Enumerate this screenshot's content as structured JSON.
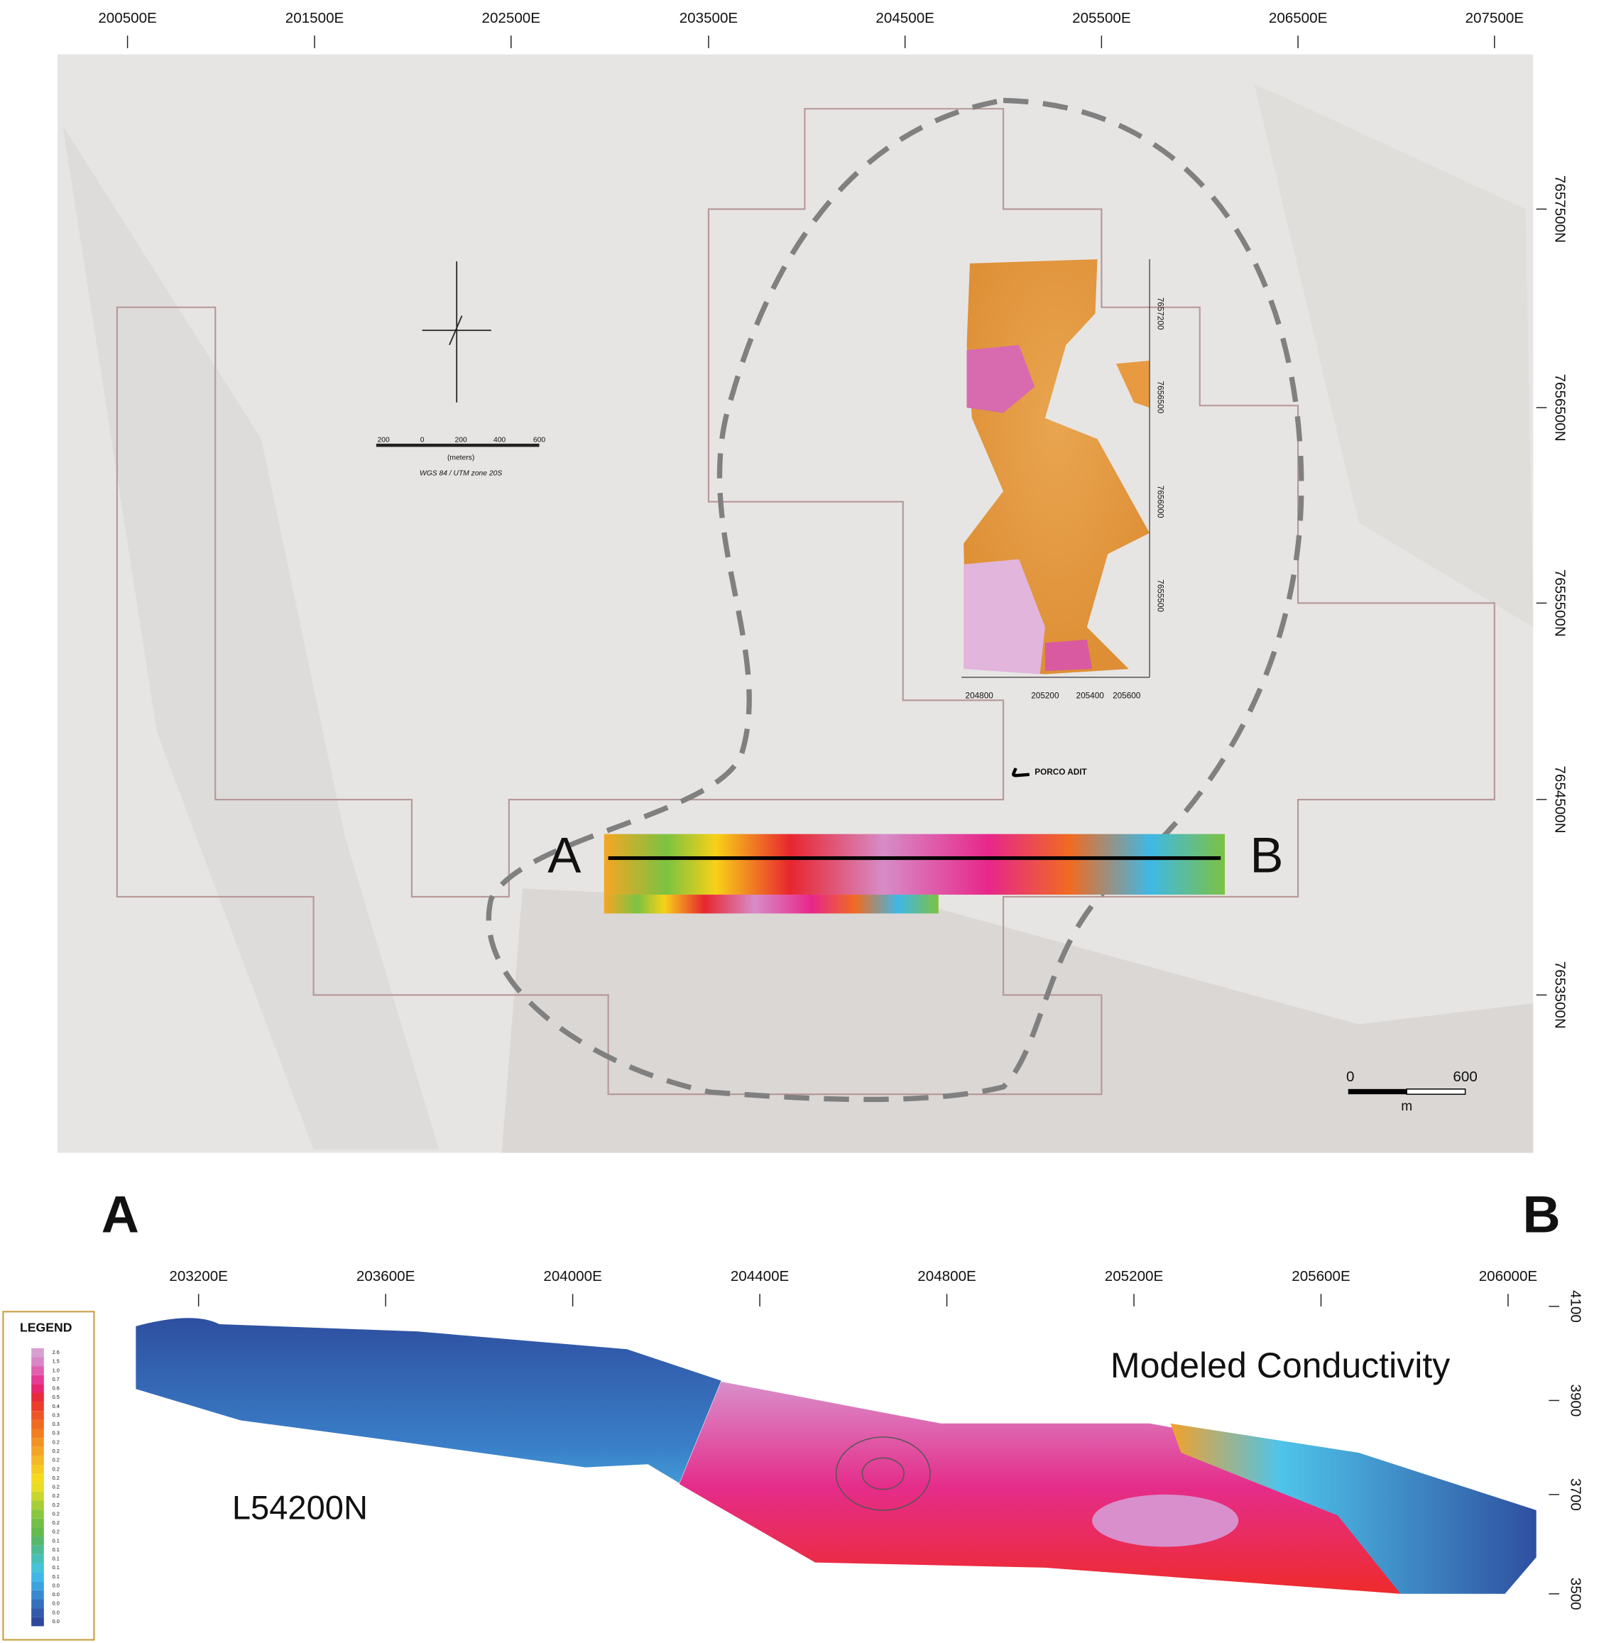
{
  "map": {
    "easting_labels": [
      "200500E",
      "201500E",
      "202500E",
      "203500E",
      "204500E",
      "205500E",
      "206500E",
      "207500E"
    ],
    "northing_labels": [
      "7657500N",
      "7656500N",
      "7655500N",
      "7654500N",
      "7653500N"
    ],
    "north_arrow_scale": {
      "ticks": [
        "200",
        "0",
        "200",
        "400",
        "600"
      ],
      "unit": "(meters)",
      "projection": "WGS 84 / UTM zone 20S"
    },
    "porco_adit": "PORCO ADIT",
    "section_start": "A",
    "section_end": "B",
    "inset": {
      "easting_labels": [
        "204800",
        "205200",
        "205400",
        "205600"
      ],
      "northing_labels": [
        "7657200",
        "7656500",
        "7656000",
        "7655500"
      ]
    },
    "scale_bar": {
      "start": "0",
      "end": "600",
      "unit": "m"
    }
  },
  "section": {
    "start": "A",
    "end": "B",
    "easting_labels": [
      "203200E",
      "203600E",
      "204000E",
      "204400E",
      "204800E",
      "205200E",
      "205600E",
      "206000E"
    ],
    "elevation_labels": [
      "4100",
      "3900",
      "3700",
      "3500"
    ],
    "title": "Modeled Conductivity",
    "line_name": "L54200N",
    "legend": {
      "title": "LEGEND",
      "labels": [
        "2.6",
        "1.5",
        "1.0",
        "0.7",
        "0.6",
        "0.5",
        "0.4",
        "0.3",
        "0.3",
        "0.3",
        "0.2",
        "0.2",
        "0.2",
        "0.2",
        "0.2",
        "0.2",
        "0.2",
        "0.2",
        "0.2",
        "0.2",
        "0.2",
        "0.1",
        "0.1",
        "0.1",
        "0.1",
        "0.1",
        "0.0",
        "0.0",
        "0.0",
        "0.0",
        "0.0"
      ]
    }
  }
}
